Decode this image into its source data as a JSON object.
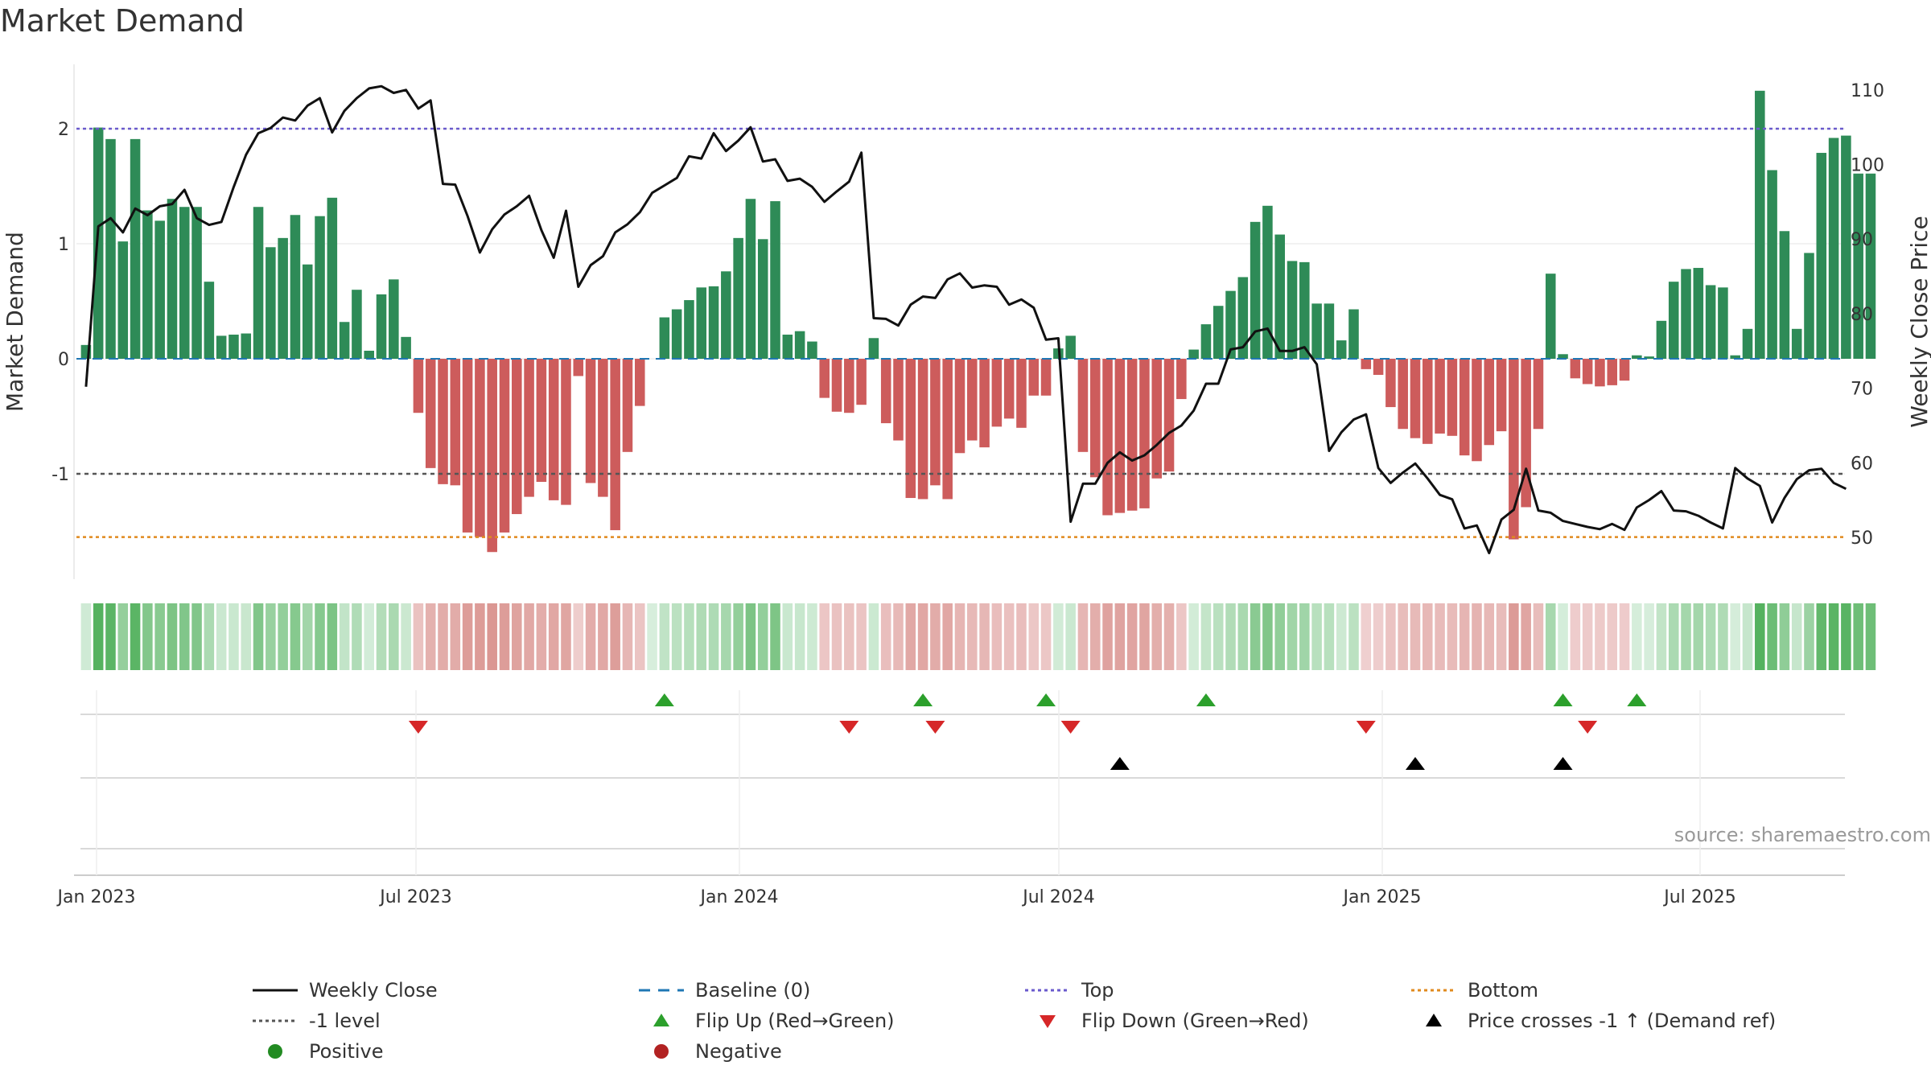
{
  "title": "Market Demand",
  "source": "source: sharemaestro.com",
  "colors": {
    "positive": "#2e8b57",
    "negative": "#cd5c5c",
    "close": "#111111",
    "baseline": "#1f77b4",
    "top": "#6a5acd",
    "minus_one": "#555555",
    "bottom": "#e08a1e",
    "flip_up": "#2ca02c",
    "flip_down": "#d62728",
    "cross": "#000000",
    "grid": "#d9d9d9"
  },
  "chart_data": {
    "type": "bar+line",
    "title": "Market Demand",
    "ylabel": "Market Demand",
    "y2label": "Weekly Close Price",
    "ylim": [
      -1.9,
      2.55
    ],
    "y2lim": [
      44,
      112
    ],
    "yticks": [
      "2",
      "1",
      "0",
      "-1"
    ],
    "y2ticks": [
      "110",
      "100",
      "90",
      "80",
      "70",
      "60",
      "50"
    ],
    "xticks": [
      "Jan 2023",
      "Jul 2023",
      "Jan 2024",
      "Jul 2024",
      "Jan 2025",
      "Jul 2025"
    ],
    "reference_lines": {
      "baseline": 0,
      "top": 2.0,
      "minus_one": -1.0,
      "bottom": -1.55
    },
    "demand": [
      0.12,
      2.01,
      1.91,
      1.02,
      1.91,
      1.29,
      1.2,
      1.39,
      1.32,
      1.32,
      0.67,
      0.2,
      0.21,
      0.22,
      1.32,
      0.97,
      1.05,
      1.25,
      0.82,
      1.24,
      1.4,
      0.32,
      0.6,
      0.07,
      0.56,
      0.69,
      0.19,
      -0.47,
      -0.95,
      -1.09,
      -1.1,
      -1.51,
      -1.55,
      -1.68,
      -1.51,
      -1.35,
      -1.2,
      -1.07,
      -1.23,
      -1.27,
      -0.15,
      -1.08,
      -1.2,
      -1.49,
      -0.81,
      -0.41,
      0.0,
      0.36,
      0.43,
      0.51,
      0.62,
      0.63,
      0.76,
      1.05,
      1.39,
      1.04,
      1.37,
      0.21,
      0.24,
      0.15,
      -0.34,
      -0.46,
      -0.47,
      -0.4,
      0.18,
      -0.56,
      -0.71,
      -1.21,
      -1.22,
      -1.1,
      -1.22,
      -0.82,
      -0.71,
      -0.77,
      -0.59,
      -0.52,
      -0.6,
      -0.32,
      -0.32,
      0.09,
      0.2,
      -0.81,
      -1.03,
      -1.36,
      -1.34,
      -1.32,
      -1.3,
      -1.04,
      -0.98,
      -0.35,
      0.08,
      0.3,
      0.46,
      0.59,
      0.71,
      1.19,
      1.33,
      1.08,
      0.85,
      0.84,
      0.48,
      0.48,
      0.16,
      0.43,
      -0.09,
      -0.14,
      -0.42,
      -0.61,
      -0.69,
      -0.74,
      -0.65,
      -0.67,
      -0.84,
      -0.89,
      -0.75,
      -0.63,
      -1.57,
      -1.29,
      -0.61,
      0.74,
      0.04,
      -0.17,
      -0.22,
      -0.24,
      -0.23,
      -0.19,
      0.03,
      0.02,
      0.33,
      0.67,
      0.78,
      0.79,
      0.64,
      0.62,
      0.03,
      0.26,
      2.33,
      1.64,
      1.11,
      0.26,
      0.92,
      1.79,
      1.92,
      1.94,
      1.61,
      1.61
    ],
    "weekly_close": [
      70.2,
      91.7,
      92.8,
      90.9,
      94.1,
      93.2,
      94.4,
      94.7,
      96.6,
      92.8,
      91.9,
      92.3,
      97.0,
      101.3,
      104.2,
      104.9,
      106.3,
      105.9,
      107.9,
      108.9,
      104.3,
      107.2,
      108.9,
      110.2,
      110.5,
      109.6,
      110.0,
      107.5,
      108.6,
      97.4,
      97.3,
      93.1,
      88.2,
      91.3,
      93.3,
      94.4,
      95.8,
      91.2,
      87.5,
      93.8,
      83.6,
      86.5,
      87.7,
      90.9,
      92.0,
      93.6,
      96.2,
      97.2,
      98.2,
      101.1,
      100.8,
      104.2,
      101.8,
      103.2,
      105.0,
      100.4,
      100.7,
      97.8,
      98.1,
      97.0,
      95.0,
      96.4,
      97.7,
      101.6,
      79.4,
      79.3,
      78.4,
      81.2,
      82.3,
      82.1,
      84.6,
      85.4,
      83.5,
      83.8,
      83.6,
      81.2,
      81.9,
      80.8,
      76.5,
      76.7,
      52.1,
      57.2,
      57.2,
      60.0,
      61.4,
      60.3,
      61.0,
      62.4,
      64.0,
      65.0,
      67.0,
      70.6,
      70.6,
      75.2,
      75.5,
      77.6,
      78.0,
      75.0,
      75.0,
      75.5,
      73.2,
      61.6,
      64.1,
      65.8,
      66.5,
      59.3,
      57.3,
      58.7,
      59.9,
      57.9,
      55.7,
      55.1,
      51.2,
      51.6,
      47.9,
      52.4,
      53.7,
      59.2,
      53.6,
      53.3,
      52.2,
      51.8,
      51.4,
      51.1,
      51.8,
      51.0,
      54.0,
      55.0,
      56.2,
      53.6,
      53.5,
      52.9,
      52.0,
      51.2,
      59.3,
      57.9,
      56.9,
      52.0,
      55.3,
      57.8,
      59.0,
      59.2,
      57.3,
      56.5
    ],
    "flip_up": [
      "2023-11-20",
      "2024-04-15",
      "2024-06-24",
      "2024-09-23",
      "2025-04-14",
      "2025-05-26"
    ],
    "flip_down": [
      "2023-07-03",
      "2024-03-04",
      "2024-04-22",
      "2024-07-08",
      "2024-12-23",
      "2025-04-28"
    ],
    "price_cross": [
      "2024-08-05",
      "2025-01-20",
      "2025-04-14"
    ],
    "positive_markers": [],
    "negative_markers": []
  },
  "legend": [
    {
      "label": "Weekly Close",
      "icon": "line-icon"
    },
    {
      "label": "Baseline (0)",
      "icon": "dash-icon"
    },
    {
      "label": "Top",
      "icon": "dotted-line-icon"
    },
    {
      "label": "Bottom",
      "icon": "dotted-line-icon"
    },
    {
      "label": "-1 level",
      "icon": "dotted-line-icon"
    },
    {
      "label": "Flip Up (Red→Green)",
      "icon": "triangle-up-icon"
    },
    {
      "label": "Flip Down (Green→Red)",
      "icon": "triangle-down-icon"
    },
    {
      "label": "Price crosses -1 ↑ (Demand ref)",
      "icon": "triangle-up-icon"
    },
    {
      "label": "Positive",
      "icon": "circle-icon"
    },
    {
      "label": "Negative",
      "icon": "circle-icon"
    }
  ]
}
